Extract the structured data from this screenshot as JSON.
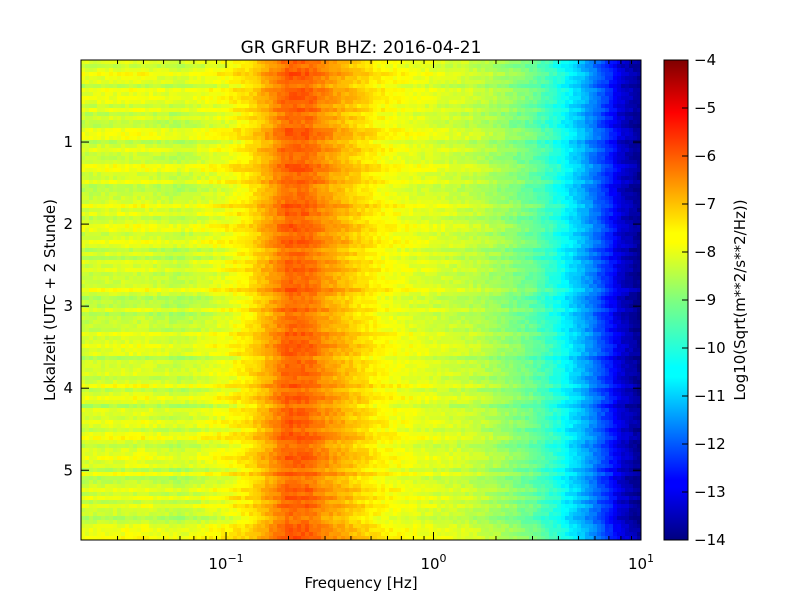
{
  "chart_data": {
    "type": "heatmap",
    "title": "GR GRFUR BHZ: 2016-04-21",
    "xlabel": "Frequency [Hz]",
    "ylabel": "Lokalzeit (UTC + 2 Stunde)",
    "x_scale": "log",
    "xlim": [
      0.02,
      10
    ],
    "ylim": [
      0,
      5.85
    ],
    "y_inverted": true,
    "x_ticks": [
      {
        "value": 0.1,
        "base": "10",
        "exp": "−1"
      },
      {
        "value": 1,
        "base": "10",
        "exp": "0"
      },
      {
        "value": 10,
        "base": "10",
        "exp": "1"
      }
    ],
    "y_ticks": [
      {
        "value": 1,
        "label": "1"
      },
      {
        "value": 2,
        "label": "2"
      },
      {
        "value": 3,
        "label": "3"
      },
      {
        "value": 4,
        "label": "4"
      },
      {
        "value": 5,
        "label": "5"
      }
    ],
    "colorbar": {
      "label": "Log10(Sqrt(m**2/s**2/Hz))",
      "colormap": "jet",
      "range": [
        -14,
        -4
      ],
      "ticks": [
        {
          "value": -4,
          "label": "−4"
        },
        {
          "value": -5,
          "label": "−5"
        },
        {
          "value": -6,
          "label": "−6"
        },
        {
          "value": -7,
          "label": "−7"
        },
        {
          "value": -8,
          "label": "−8"
        },
        {
          "value": -9,
          "label": "−9"
        },
        {
          "value": -10,
          "label": "−10"
        },
        {
          "value": -11,
          "label": "−11"
        },
        {
          "value": -12,
          "label": "−12"
        },
        {
          "value": -13,
          "label": "−13"
        },
        {
          "value": -14,
          "label": "−14"
        }
      ]
    },
    "spectrum_profile": [
      {
        "f": 0.02,
        "v": -8.2
      },
      {
        "f": 0.04,
        "v": -8.1
      },
      {
        "f": 0.06,
        "v": -8.3
      },
      {
        "f": 0.1,
        "v": -7.9
      },
      {
        "f": 0.13,
        "v": -7.5
      },
      {
        "f": 0.16,
        "v": -6.9
      },
      {
        "f": 0.2,
        "v": -6.2
      },
      {
        "f": 0.25,
        "v": -6.3
      },
      {
        "f": 0.3,
        "v": -6.7
      },
      {
        "f": 0.4,
        "v": -7.2
      },
      {
        "f": 0.55,
        "v": -7.7
      },
      {
        "f": 0.8,
        "v": -8.0
      },
      {
        "f": 1.0,
        "v": -8.1
      },
      {
        "f": 1.5,
        "v": -8.3
      },
      {
        "f": 2.0,
        "v": -8.6
      },
      {
        "f": 3.0,
        "v": -9.2
      },
      {
        "f": 4.0,
        "v": -10.0
      },
      {
        "f": 5.0,
        "v": -10.8
      },
      {
        "f": 6.0,
        "v": -11.6
      },
      {
        "f": 7.0,
        "v": -12.4
      },
      {
        "f": 8.0,
        "v": -13.2
      },
      {
        "f": 10.0,
        "v": -13.9
      }
    ],
    "time_bins": 120,
    "grid": false
  }
}
